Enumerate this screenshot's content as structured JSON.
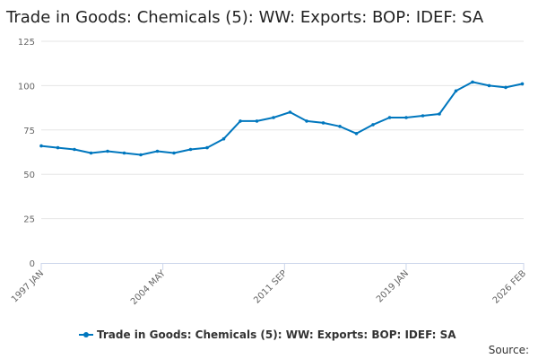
{
  "title": "Trade in Goods: Chemicals (5): WW: Exports: BOP: IDEF: SA",
  "source_label": "Source:",
  "colors": {
    "series": "#0077be",
    "grid": "#e6e6e6",
    "axis": "#ccd6eb"
  },
  "chart_data": {
    "type": "line",
    "title": "Trade in Goods: Chemicals (5): WW: Exports: BOP: IDEF: SA",
    "xlabel": "",
    "ylabel": "",
    "ylim": [
      0,
      125
    ],
    "y_ticks": [
      0,
      25,
      50,
      75,
      100,
      125
    ],
    "x_ticks": [
      {
        "label": "1997 JAN",
        "t": 1997.0
      },
      {
        "label": "2004 MAY",
        "t": 2004.333
      },
      {
        "label": "2011 SEP",
        "t": 2011.667
      },
      {
        "label": "2019 JAN",
        "t": 2019.0
      },
      {
        "label": "2026 FEB",
        "t": 2026.083
      }
    ],
    "xlim": [
      1997.0,
      2026.083
    ],
    "legend": "bottom-center",
    "series": [
      {
        "name": "Trade in Goods: Chemicals (5): WW: Exports: BOP: IDEF: SA",
        "x": [
          1997.0,
          1998.0,
          1999.0,
          2000.0,
          2001.0,
          2002.0,
          2003.0,
          2004.0,
          2005.0,
          2006.0,
          2007.0,
          2008.0,
          2009.0,
          2010.0,
          2011.0,
          2012.0,
          2013.0,
          2014.0,
          2015.0,
          2016.0,
          2017.0,
          2018.0,
          2019.0,
          2020.0,
          2021.0,
          2022.0,
          2023.0,
          2024.0,
          2025.0,
          2026.0
        ],
        "y": [
          66,
          65,
          64,
          62,
          63,
          62,
          61,
          63,
          62,
          64,
          65,
          70,
          80,
          80,
          82,
          85,
          80,
          79,
          77,
          73,
          78,
          82,
          82,
          83,
          84,
          97,
          102,
          100,
          99,
          101
        ]
      }
    ]
  }
}
